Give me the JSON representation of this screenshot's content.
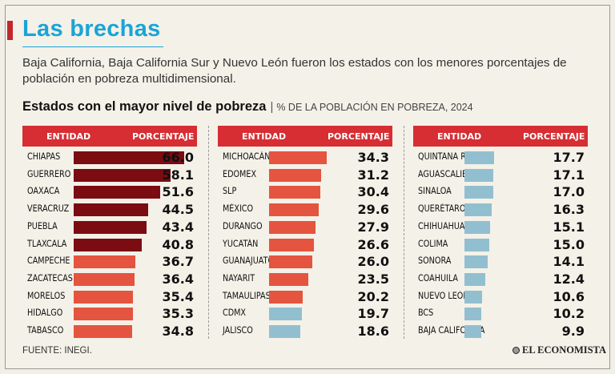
{
  "title": "Las brechas",
  "subtitle": "Baja California, Baja California Sur y Nuevo León fueron los estados con los menores porcentajes de población en pobreza multidimensional.",
  "section_title": "Estados con el mayor nivel de pobreza",
  "section_separator": "|",
  "section_subtitle": "% DE LA POBLACIÓN EN POBREZA, 2024",
  "source": "FUENTE: INEGI.",
  "logo_text": "EL ECONOMISTA",
  "colors": {
    "title": "#1aa4d8",
    "header": "#d62e33",
    "dark_red": "#7a0c12",
    "red": "#e5543f",
    "blue": "#92bfd0"
  },
  "chart_data": {
    "type": "bar",
    "orientation": "horizontal",
    "title": "Estados con el mayor nivel de pobreza",
    "subtitle": "% DE LA POBLACIÓN EN POBREZA, 2024",
    "xlabel": "PORCENTAJE",
    "ylabel": "ENTIDAD",
    "xlim": [
      0,
      66
    ],
    "column_headers": [
      "ENTIDAD",
      "PORCENTAJE"
    ],
    "panels": [
      {
        "rows": [
          {
            "entity": "CHIAPAS",
            "value": 66.0,
            "display": "66.0",
            "color": "dark_red"
          },
          {
            "entity": "GUERRERO",
            "value": 58.1,
            "display": "58.1",
            "color": "dark_red"
          },
          {
            "entity": "OAXACA",
            "value": 51.6,
            "display": "51.6",
            "color": "dark_red"
          },
          {
            "entity": "VERACRUZ",
            "value": 44.5,
            "display": "44.5",
            "color": "dark_red"
          },
          {
            "entity": "PUEBLA",
            "value": 43.4,
            "display": "43.4",
            "color": "dark_red"
          },
          {
            "entity": "TLAXCALA",
            "value": 40.8,
            "display": "40.8",
            "color": "dark_red"
          },
          {
            "entity": "CAMPECHE",
            "value": 36.7,
            "display": "36.7",
            "color": "red"
          },
          {
            "entity": "ZACATECAS",
            "value": 36.4,
            "display": "36.4",
            "color": "red"
          },
          {
            "entity": "MORELOS",
            "value": 35.4,
            "display": "35.4",
            "color": "red"
          },
          {
            "entity": "HIDALGO",
            "value": 35.3,
            "display": "35.3",
            "color": "red"
          },
          {
            "entity": "TABASCO",
            "value": 34.8,
            "display": "34.8",
            "color": "red"
          }
        ]
      },
      {
        "rows": [
          {
            "entity": "MICHOACÁN",
            "value": 34.3,
            "display": "34.3",
            "color": "red"
          },
          {
            "entity": "EDOMEX",
            "value": 31.2,
            "display": "31.2",
            "color": "red"
          },
          {
            "entity": "SLP",
            "value": 30.4,
            "display": "30.4",
            "color": "red"
          },
          {
            "entity": "MÉXICO",
            "value": 29.6,
            "display": "29.6",
            "color": "red"
          },
          {
            "entity": "DURANGO",
            "value": 27.9,
            "display": "27.9",
            "color": "red"
          },
          {
            "entity": "YUCATÁN",
            "value": 26.6,
            "display": "26.6",
            "color": "red"
          },
          {
            "entity": "GUANAJUATO",
            "value": 26.0,
            "display": "26.0",
            "color": "red"
          },
          {
            "entity": "NAYARIT",
            "value": 23.5,
            "display": "23.5",
            "color": "red"
          },
          {
            "entity": "TAMAULIPAS",
            "value": 20.2,
            "display": "20.2",
            "color": "red"
          },
          {
            "entity": "CDMX",
            "value": 19.7,
            "display": "19.7",
            "color": "blue"
          },
          {
            "entity": "JALISCO",
            "value": 18.6,
            "display": "18.6",
            "color": "blue"
          }
        ]
      },
      {
        "rows": [
          {
            "entity": "QUINTANA ROO",
            "value": 17.7,
            "display": "17.7",
            "color": "blue"
          },
          {
            "entity": "AGUASCALIENTES",
            "value": 17.1,
            "display": "17.1",
            "color": "blue"
          },
          {
            "entity": "SINALOA",
            "value": 17.0,
            "display": "17.0",
            "color": "blue"
          },
          {
            "entity": "QUERÉTARO",
            "value": 16.3,
            "display": "16.3",
            "color": "blue"
          },
          {
            "entity": "CHIHUAHUA",
            "value": 15.1,
            "display": "15.1",
            "color": "blue"
          },
          {
            "entity": "COLIMA",
            "value": 15.0,
            "display": "15.0",
            "color": "blue"
          },
          {
            "entity": "SONORA",
            "value": 14.1,
            "display": "14.1",
            "color": "blue"
          },
          {
            "entity": "COAHUILA",
            "value": 12.4,
            "display": "12.4",
            "color": "blue"
          },
          {
            "entity": "NUEVO LEÓN",
            "value": 10.6,
            "display": "10.6",
            "color": "blue"
          },
          {
            "entity": "BCS",
            "value": 10.2,
            "display": "10.2",
            "color": "blue"
          },
          {
            "entity": "BAJA CALIFORNIA",
            "value": 9.9,
            "display": "9.9",
            "color": "blue"
          }
        ]
      }
    ]
  }
}
